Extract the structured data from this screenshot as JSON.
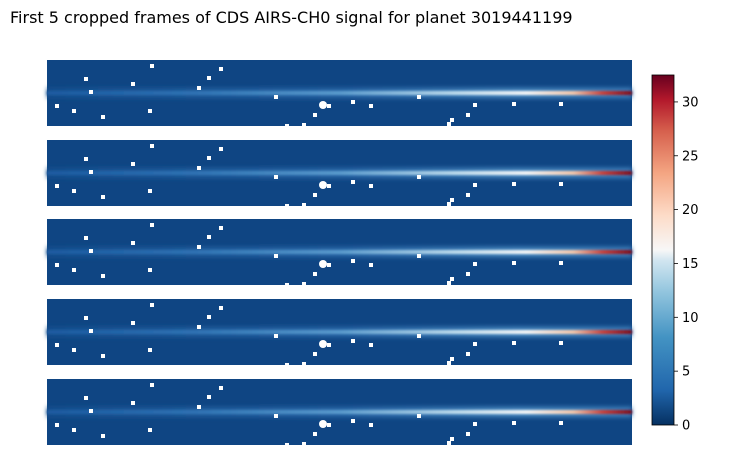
{
  "chart_data": {
    "type": "heatmap",
    "title": "First 5 cropped frames of CDS AIRS-CH0 signal for planet 3019441199",
    "frames": 5,
    "colormap": "RdBu_r",
    "colorbar": {
      "min": 0,
      "max": 32.5,
      "ticks": [
        0,
        5,
        10,
        15,
        20,
        25,
        30
      ]
    },
    "axes": "off",
    "description_of_values": {
      "background_level": 0.8,
      "spectral_trace_peak_right": 32,
      "spectral_trace_peak_left": 4
    },
    "masked_pixels": "white"
  }
}
